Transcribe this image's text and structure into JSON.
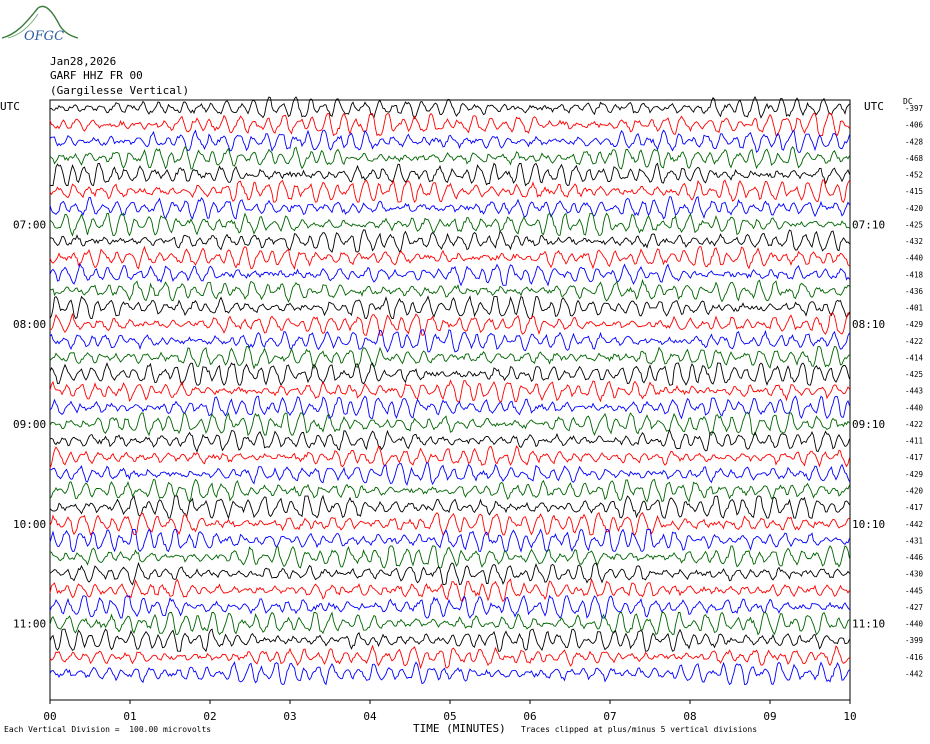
{
  "logo": {
    "text": "OFGC",
    "colors": {
      "hill": "#3a7a3a",
      "text": "#2d5ea0"
    }
  },
  "header": {
    "date": "Jan28,2026",
    "station": "GARF HHZ FR 00",
    "location": "(Gargilesse Vertical)"
  },
  "utc_left": "UTC",
  "utc_right": "UTC",
  "dc_label": "DC",
  "footer": {
    "note_left": "Each Vertical Division =  100.00 microvolts",
    "xlabel": "TIME (MINUTES)",
    "note_right": "Traces clipped at plus/minus 5 vertical divisions"
  },
  "chart_data": {
    "type": "line",
    "title": "",
    "xlabel": "TIME (MINUTES)",
    "ylabel": "",
    "xlim": [
      0,
      10
    ],
    "x_ticks": [
      "00",
      "01",
      "02",
      "03",
      "04",
      "05",
      "06",
      "07",
      "08",
      "09",
      "10"
    ],
    "trace_colors": [
      "#000000",
      "#ff0000",
      "#0000ff",
      "#006400"
    ],
    "traces_per_hour": 6,
    "left_time_labels": [
      {
        "trace_index": 7,
        "label": "07:00"
      },
      {
        "trace_index": 13,
        "label": "08:00"
      },
      {
        "trace_index": 19,
        "label": "09:00"
      },
      {
        "trace_index": 25,
        "label": "10:00"
      },
      {
        "trace_index": 31,
        "label": "11:00"
      }
    ],
    "right_time_labels": [
      {
        "trace_index": 7,
        "label": "07:10"
      },
      {
        "trace_index": 13,
        "label": "08:10"
      },
      {
        "trace_index": 19,
        "label": "09:10"
      },
      {
        "trace_index": 25,
        "label": "10:10"
      },
      {
        "trace_index": 31,
        "label": "11:10"
      }
    ],
    "dc_offsets": [
      -397,
      -406,
      -428,
      -468,
      -452,
      -415,
      -420,
      -425,
      -432,
      -440,
      -418,
      -436,
      -401,
      -429,
      -422,
      -414,
      -425,
      -443,
      -440,
      -422,
      -411,
      -417,
      -429,
      -420,
      -417,
      -442,
      -431,
      -446,
      -430,
      -445,
      -427,
      -440,
      -399,
      -416,
      -442
    ],
    "clip_divisions": 5,
    "vertical_division": "100.00 microvolts"
  }
}
